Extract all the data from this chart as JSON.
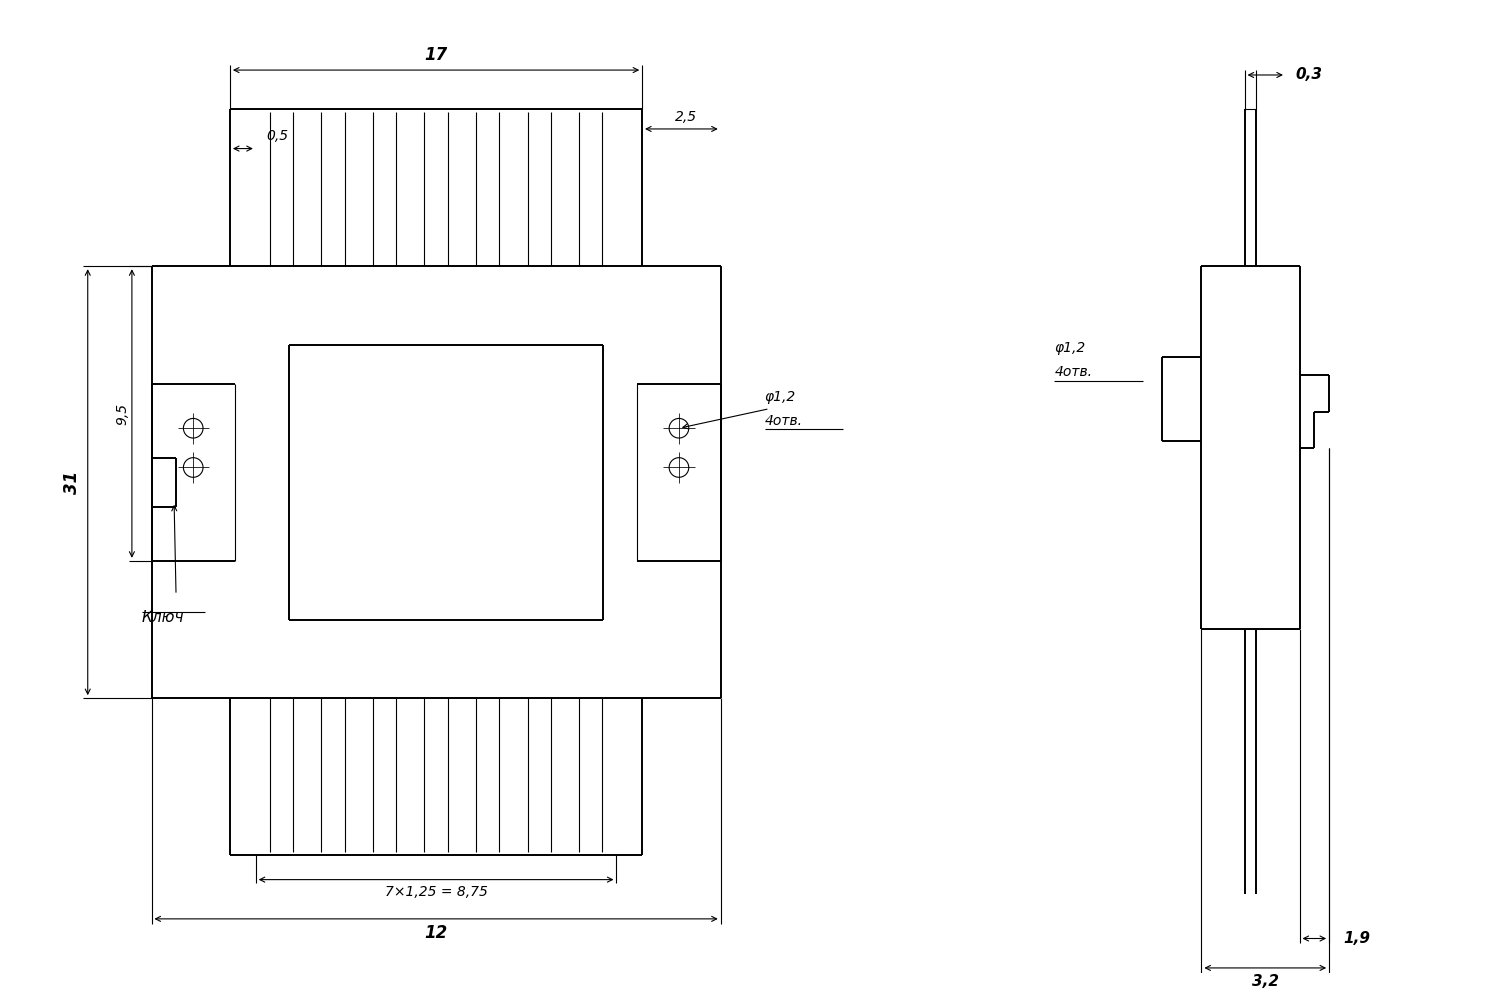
{
  "bg_color": "#ffffff",
  "line_color": "#000000",
  "fig_width": 15.1,
  "fig_height": 9.9,
  "annotations": {
    "dim_17": "17",
    "dim_05": "0,5",
    "dim_25": "2,5",
    "dim_phi12": "φ1,2",
    "dim_4otv": "4отв.",
    "dim_31": "31",
    "dim_95": "9,5",
    "dim_key": "Ключ",
    "dim_7x125": "7×1,25 = 8,75",
    "dim_12": "12",
    "dim_03": "0,3",
    "dim_19": "1,9",
    "dim_32": "3,2"
  }
}
